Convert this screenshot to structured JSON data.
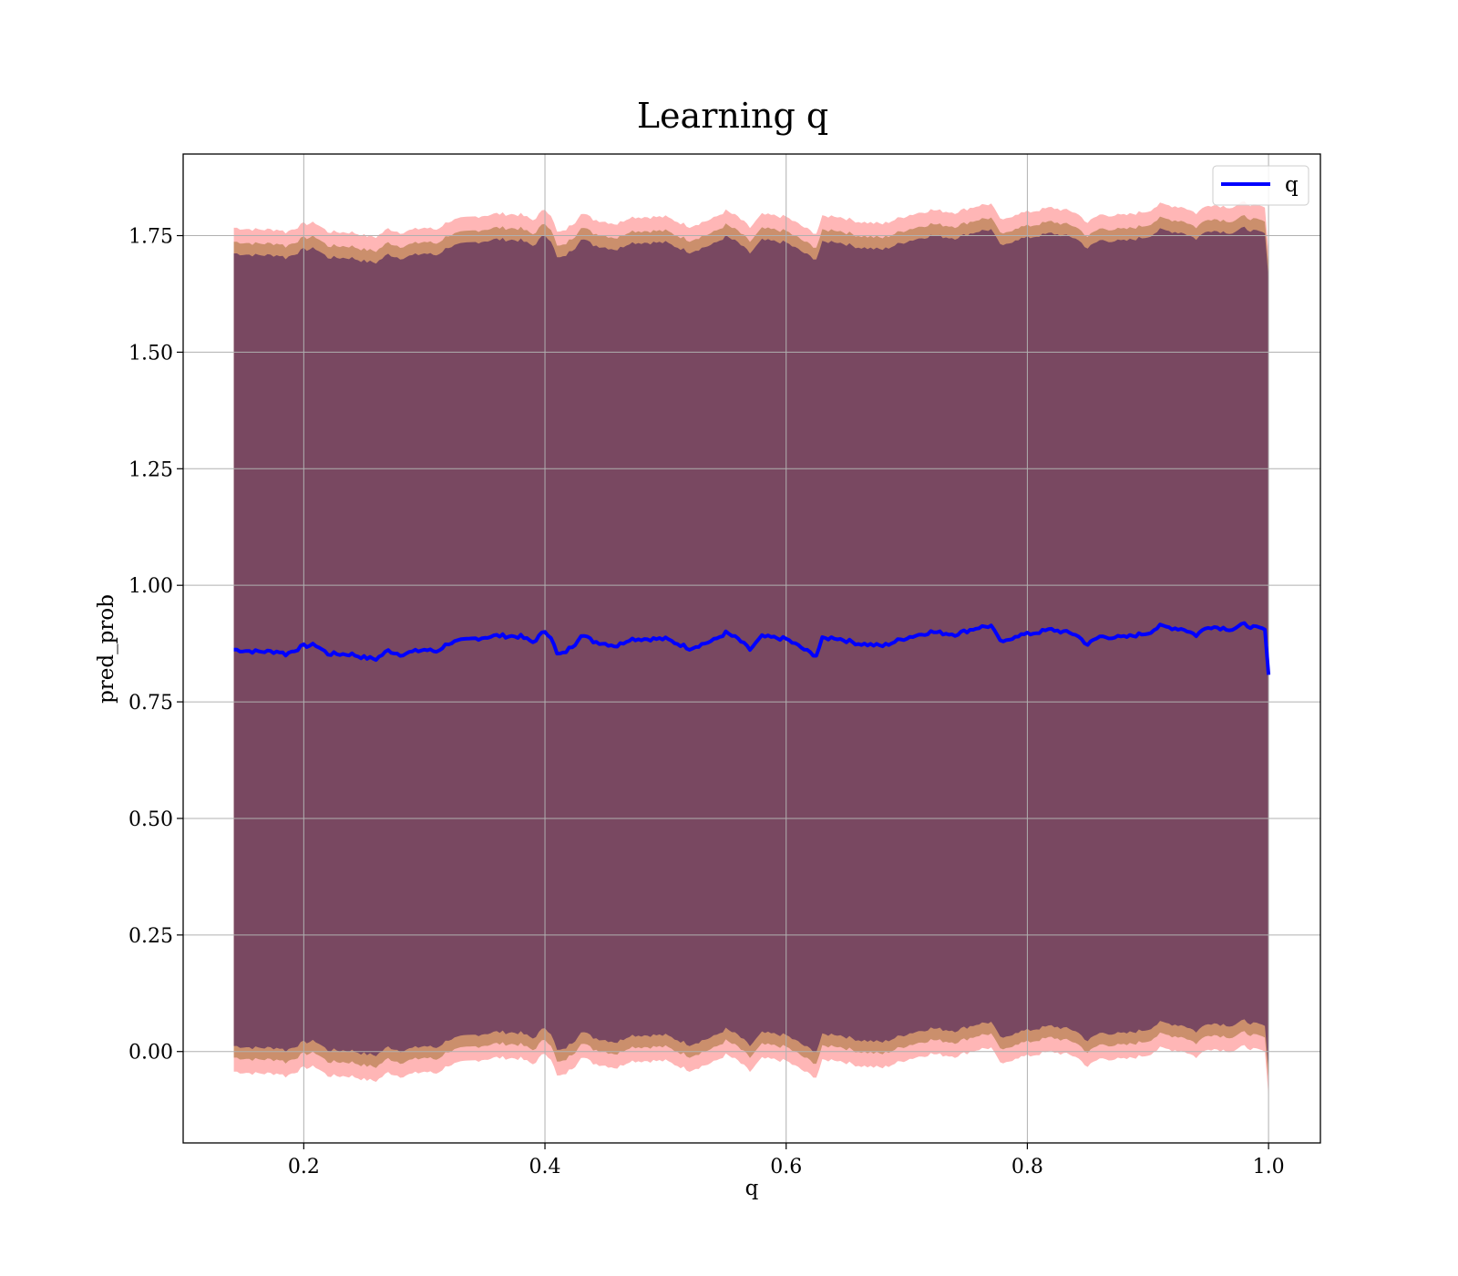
{
  "chart_data": {
    "type": "line",
    "title": "Learning q",
    "xlabel": "q",
    "ylabel": "pred_prob",
    "xlim": [
      0.1,
      1.043
    ],
    "ylim": [
      -0.196,
      1.925
    ],
    "xticks": [
      0.2,
      0.4,
      0.6,
      0.8,
      1.0
    ],
    "xtick_labels": [
      "0.2",
      "0.4",
      "0.6",
      "0.8",
      "1.0"
    ],
    "yticks": [
      0.0,
      0.25,
      0.5,
      0.75,
      1.0,
      1.25,
      1.5,
      1.75
    ],
    "ytick_labels": [
      "0.00",
      "0.25",
      "0.50",
      "0.75",
      "1.00",
      "1.25",
      "1.50",
      "1.75"
    ],
    "grid": true,
    "legend": {
      "placement": "upper-right",
      "entries": [
        "q"
      ]
    },
    "series": [
      {
        "name": "q",
        "color": "#0000ff",
        "x": [
          0.142,
          0.16,
          0.18,
          0.185,
          0.2,
          0.21,
          0.22,
          0.24,
          0.25,
          0.26,
          0.27,
          0.28,
          0.3,
          0.31,
          0.32,
          0.34,
          0.36,
          0.38,
          0.39,
          0.4,
          0.405,
          0.41,
          0.415,
          0.425,
          0.43,
          0.44,
          0.46,
          0.47,
          0.5,
          0.52,
          0.54,
          0.55,
          0.56,
          0.57,
          0.58,
          0.6,
          0.62,
          0.625,
          0.63,
          0.64,
          0.66,
          0.68,
          0.7,
          0.72,
          0.74,
          0.76,
          0.77,
          0.775,
          0.78,
          0.79,
          0.8,
          0.82,
          0.84,
          0.85,
          0.86,
          0.88,
          0.9,
          0.91,
          0.93,
          0.94,
          0.95,
          0.97,
          0.98,
          0.99,
          0.997,
          1.0
        ],
        "values": [
          0.862,
          0.858,
          0.858,
          0.852,
          0.87,
          0.872,
          0.853,
          0.852,
          0.845,
          0.842,
          0.86,
          0.852,
          0.862,
          0.858,
          0.876,
          0.885,
          0.892,
          0.89,
          0.878,
          0.902,
          0.89,
          0.852,
          0.853,
          0.875,
          0.895,
          0.88,
          0.87,
          0.885,
          0.885,
          0.865,
          0.882,
          0.898,
          0.885,
          0.862,
          0.89,
          0.885,
          0.855,
          0.85,
          0.885,
          0.888,
          0.875,
          0.87,
          0.888,
          0.9,
          0.895,
          0.91,
          0.913,
          0.89,
          0.876,
          0.892,
          0.895,
          0.905,
          0.895,
          0.873,
          0.89,
          0.888,
          0.898,
          0.912,
          0.906,
          0.893,
          0.912,
          0.906,
          0.916,
          0.908,
          0.905,
          0.808
        ]
      }
    ],
    "bands": [
      {
        "color": "#ff5050",
        "opacity": 0.42,
        "half_width": 0.905
      },
      {
        "color": "#a07030",
        "opacity": 0.55,
        "half_width": 0.875
      },
      {
        "color": "#704060",
        "opacity": 0.9,
        "half_width": 0.85
      }
    ]
  }
}
